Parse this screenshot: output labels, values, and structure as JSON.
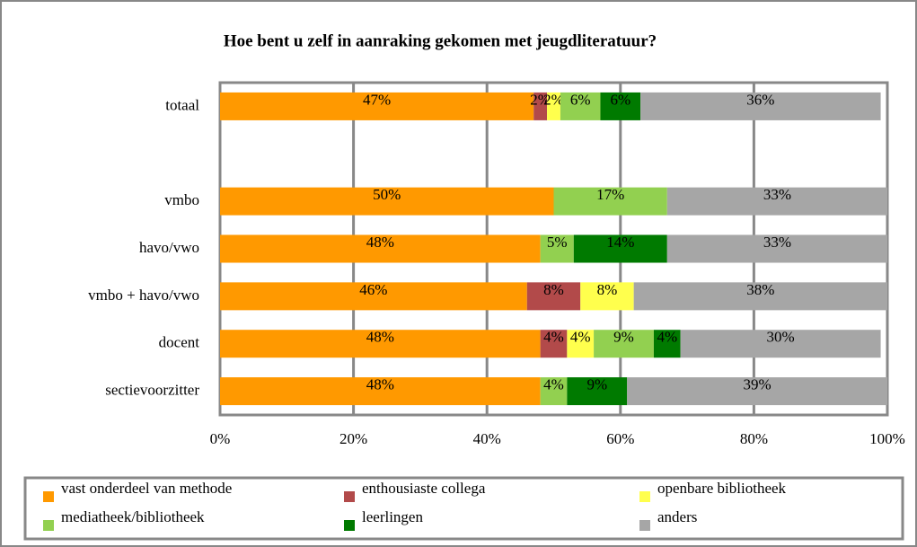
{
  "chart_data": {
    "type": "stacked-bar-horizontal",
    "title": "Hoe bent u zelf in aanraking gekomen met jeugdliteratuur?",
    "categories": [
      "totaal",
      null,
      "vmbo",
      "havo/vwo",
      "vmbo + havo/vwo",
      "docent",
      "sectievoorzitter"
    ],
    "series": [
      {
        "name": "vast onderdeel van methode",
        "color": "#ff9900",
        "values": [
          47,
          null,
          50,
          48,
          46,
          48,
          48
        ],
        "value_labels": [
          "47%",
          null,
          "50%",
          "48%",
          "46%",
          "48%",
          "48%"
        ]
      },
      {
        "name": "enthousiaste collega",
        "color": "#b24a4a",
        "values": [
          2,
          null,
          null,
          null,
          8,
          4,
          null
        ],
        "value_labels": [
          "2%",
          null,
          null,
          null,
          "8%",
          "4%",
          null
        ]
      },
      {
        "name": "openbare bibliotheek",
        "color": "#ffff4d",
        "values": [
          2,
          null,
          null,
          null,
          8,
          4,
          null
        ],
        "value_labels": [
          "2%",
          null,
          null,
          null,
          "8%",
          "4%",
          null
        ]
      },
      {
        "name": "mediatheek/bibliotheek",
        "color": "#92d050",
        "values": [
          6,
          null,
          17,
          5,
          null,
          9,
          4
        ],
        "value_labels": [
          "6%",
          null,
          "17%",
          "5%",
          null,
          "9%",
          "4%"
        ]
      },
      {
        "name": "leerlingen",
        "color": "#007a00",
        "values": [
          6,
          null,
          null,
          14,
          null,
          4,
          9
        ],
        "value_labels": [
          "6%",
          null,
          null,
          "14%",
          null,
          "4%",
          "9%"
        ]
      },
      {
        "name": "anders",
        "color": "#a6a6a6",
        "values": [
          36,
          null,
          33,
          33,
          38,
          30,
          39
        ],
        "value_labels": [
          "36%",
          null,
          "33%",
          "33%",
          "38%",
          "30%",
          "39%"
        ]
      }
    ],
    "xlim": [
      0,
      100
    ],
    "xticks": [
      {
        "value": 0,
        "label": "0%"
      },
      {
        "value": 20,
        "label": "20%"
      },
      {
        "value": 40,
        "label": "40%"
      },
      {
        "value": 60,
        "label": "60%"
      },
      {
        "value": 80,
        "label": "80%"
      },
      {
        "value": 100,
        "label": "100%"
      }
    ],
    "grid": true,
    "legend": "bottom"
  }
}
